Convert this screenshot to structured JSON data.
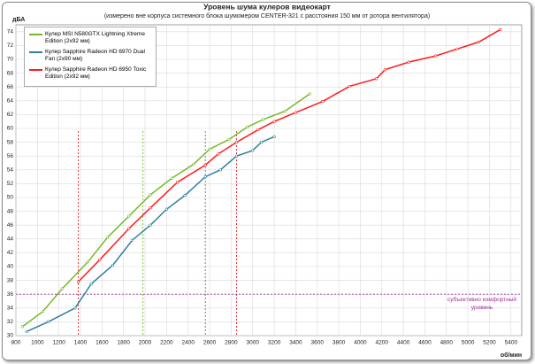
{
  "chart_data": {
    "type": "line",
    "title": "Уровень шума кулеров видеокарт",
    "subtitle": "(измерено вне корпуса системного блока шумомером CENTER-321 с расстояния 150  мм от ротора вентилятора)",
    "y_label": "дБА",
    "x_label": "об/мин",
    "xlim": [
      800,
      5500
    ],
    "ylim": [
      30,
      75
    ],
    "xticks": [
      800,
      1000,
      1200,
      1400,
      1600,
      1800,
      2000,
      2200,
      2400,
      2600,
      2800,
      3000,
      3200,
      3400,
      3600,
      3800,
      4000,
      4200,
      4400,
      4600,
      4800,
      5000,
      5200,
      5400
    ],
    "yticks": [
      30,
      32,
      34,
      36,
      38,
      40,
      42,
      44,
      46,
      48,
      50,
      52,
      54,
      56,
      58,
      60,
      62,
      64,
      66,
      68,
      70,
      72,
      74
    ],
    "grid": true,
    "legend": "upper left",
    "series": [
      {
        "name": "Кулер MSI N580GTX Lightning Xtreme Edition (2x92 мм)",
        "color": "#76b82a",
        "x": [
          860,
          1050,
          1230,
          1470,
          1650,
          1850,
          2050,
          2250,
          2450,
          2600,
          2780,
          2950,
          3100,
          3300,
          3530
        ],
        "values": [
          31.3,
          33.5,
          36.8,
          40.7,
          44.2,
          47.3,
          50.4,
          52.8,
          54.8,
          57,
          58.4,
          60.2,
          61.3,
          62.5,
          65
        ]
      },
      {
        "name": "Кулер Sapphire Radeon HD 6970 Dual Fan (2x90 мм)",
        "color": "#2f7f9c",
        "x": [
          900,
          1100,
          1350,
          1500,
          1700,
          1880,
          2050,
          2200,
          2370,
          2560,
          2700,
          2850,
          3000,
          3080,
          3200
        ],
        "values": [
          30.6,
          32,
          34,
          37.5,
          40.2,
          43.8,
          46,
          48.3,
          50.3,
          53,
          54,
          56,
          56.8,
          58,
          58.8
        ]
      },
      {
        "name": "Кулер Sapphire Radeon HD 6950 Toxic Edition (2x92 мм)",
        "color": "#ff1a1a",
        "x": [
          1380,
          1580,
          1850,
          2050,
          2300,
          2560,
          2680,
          2850,
          3050,
          3200,
          3400,
          3650,
          3900,
          4150,
          4230,
          4450,
          4700,
          4900,
          5100,
          5300
        ],
        "values": [
          37.8,
          41,
          45.5,
          48.5,
          52.2,
          54.7,
          56.3,
          58,
          59.8,
          61,
          62.3,
          63.9,
          66.1,
          67.2,
          68.5,
          69.6,
          70.5,
          71.5,
          72.5,
          74.3
        ]
      }
    ],
    "reference_lines": [
      {
        "x": 1380,
        "color": "#e02020"
      },
      {
        "x": 1980,
        "color": "#76b82a"
      },
      {
        "x": 2560,
        "color": "#2f7f9c"
      },
      {
        "x": 2850,
        "color": "#e02020"
      }
    ],
    "comfort_level": {
      "value": 36,
      "label": "субъективно комфортный уровень",
      "color": "#a0309a"
    }
  }
}
